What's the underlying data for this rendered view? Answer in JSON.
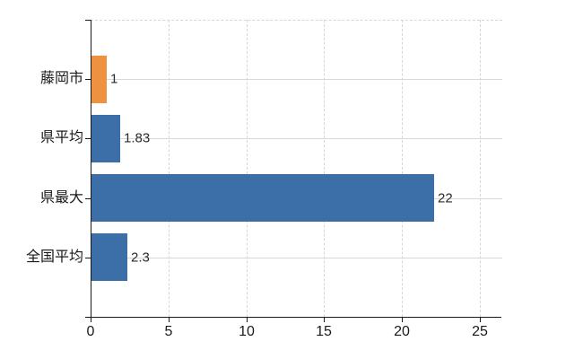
{
  "chart_data": {
    "type": "bar",
    "orientation": "horizontal",
    "title": "",
    "xlabel": "",
    "ylabel": "",
    "categories": [
      "藤岡市",
      "県平均",
      "県最大",
      "全国平均"
    ],
    "values": [
      1,
      1.83,
      22,
      2.3
    ],
    "value_labels": [
      "1",
      "1.83",
      "22",
      "2.3"
    ],
    "bar_colors": [
      "#ee9140",
      "#3c6fa8",
      "#3c6fa8",
      "#3c6fa8"
    ],
    "x_ticks": [
      0,
      5,
      10,
      15,
      20,
      25
    ],
    "x_tick_labels": [
      "0",
      "5",
      "10",
      "15",
      "20",
      "25"
    ],
    "xlim": [
      0,
      26.4
    ],
    "grid": {
      "vertical": "dashed",
      "horizontal": "solid"
    },
    "legend_position": "none"
  },
  "colors": {
    "highlight_bar": "#ee9140",
    "default_bar": "#3c6fa8",
    "axis": "#1a1a1a",
    "gridline": "#d6d6d6",
    "tick_text": "#1a1a1a",
    "value_text": "#2a2a2a",
    "background": "#ffffff"
  }
}
